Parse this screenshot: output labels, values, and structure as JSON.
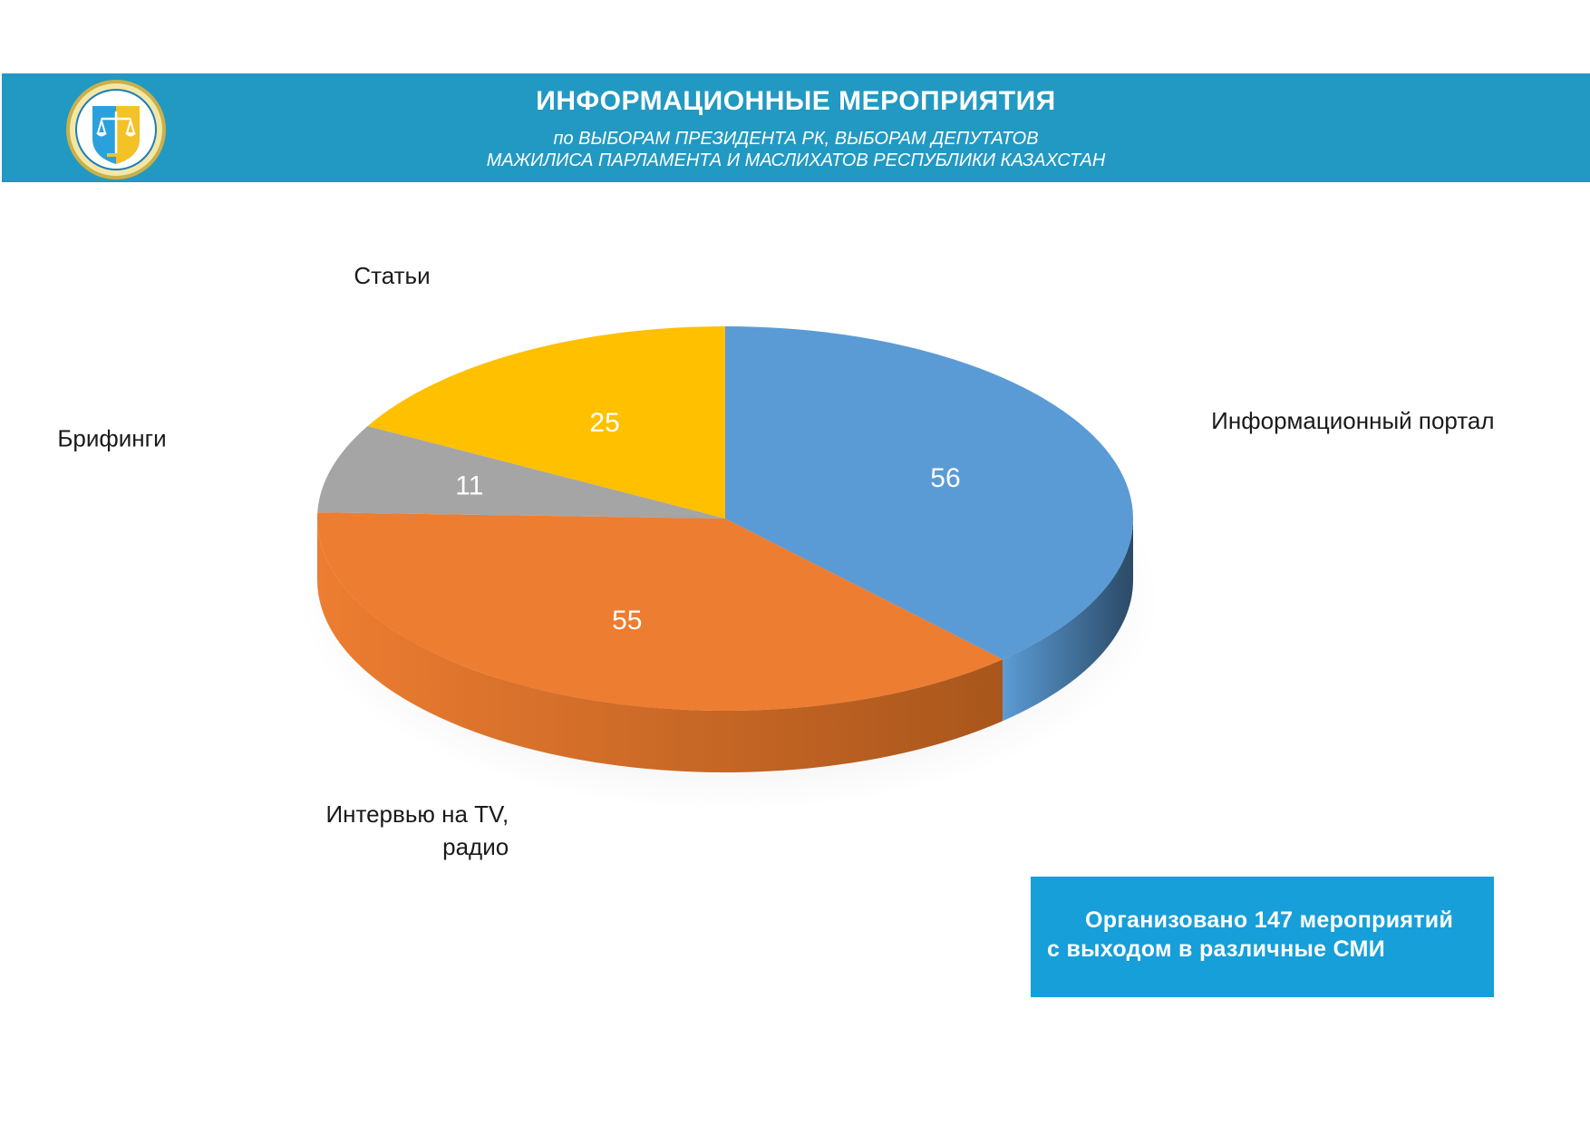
{
  "header": {
    "title": "ИНФОРМАЦИОННЫЕ МЕРОПРИЯТИЯ",
    "subtitle_line1": "по ВЫБОРАМ ПРЕЗИДЕНТА РК, ВЫБОРАМ ДЕПУТАТОВ",
    "subtitle_line2": "МАЖИЛИСА ПАРЛАМЕНТА И МАСЛИХАТОВ РЕСПУБЛИКИ КАЗАХСТАН",
    "logo_icon": "scales-of-justice-emblem"
  },
  "chart_data": {
    "type": "pie",
    "title": "",
    "categories": [
      "Информационный портал",
      "Интервью на TV, радио",
      "Брифинги",
      "Статьи"
    ],
    "label_lines": [
      [
        "Информационный портал"
      ],
      [
        "Интервью на TV,",
        "радио"
      ],
      [
        "Брифинги"
      ],
      [
        "Статьи"
      ]
    ],
    "values": [
      56,
      55,
      11,
      25
    ],
    "colors": [
      "#5b9bd5",
      "#ed7d31",
      "#a5a5a5",
      "#ffc000"
    ],
    "side_colors": [
      "#2b4a66",
      "#a9561c",
      "#6b6b6b",
      "#b88a00"
    ],
    "style": "3d"
  },
  "summary": {
    "line1": "Организовано 147 мероприятий",
    "line2": "с выходом в различные СМИ"
  }
}
